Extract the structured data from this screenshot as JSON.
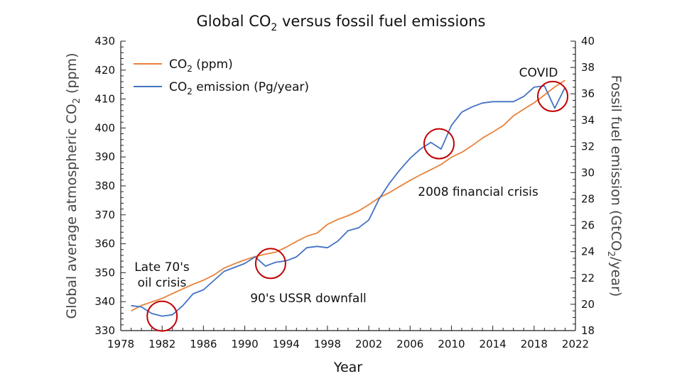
{
  "chart_data": {
    "type": "line",
    "title": "Global CO2 versus fossil fuel emissions",
    "title_parts": {
      "pre": "Global CO",
      "sub": "2",
      "post": " versus fossil fuel emissions"
    },
    "xlabel": "Year",
    "ylabel": "Global average atmospheric CO2 (ppm)",
    "ylabel_parts": {
      "pre": "Global average atmospheric CO",
      "sub": "2",
      "post": " (ppm)"
    },
    "y2label": "Fossil fuel emission (GtCO2/year)",
    "y2label_parts": {
      "pre": "Fossil fuel emission (GtCO",
      "sub": "2",
      "post": "/year)"
    },
    "xlim": [
      1978,
      2022
    ],
    "ylim": [
      330,
      430
    ],
    "y2lim": [
      18,
      40
    ],
    "x_ticks": [
      1978,
      1982,
      1986,
      1990,
      1994,
      1998,
      2002,
      2006,
      2010,
      2014,
      2018,
      2022
    ],
    "y_ticks": [
      330,
      340,
      350,
      360,
      370,
      380,
      390,
      400,
      410,
      420,
      430
    ],
    "y2_ticks": [
      18,
      20,
      22,
      24,
      26,
      28,
      30,
      32,
      34,
      36,
      38,
      40
    ],
    "legend_position": "top-left",
    "series": [
      {
        "name": "CO2 (ppm)",
        "legend_parts": {
          "pre": "CO",
          "sub": "2",
          "post": " (ppm)"
        },
        "axis": "left",
        "color": "#E8823A",
        "x": [
          1979,
          1980,
          1981,
          1982,
          1983,
          1984,
          1985,
          1986,
          1987,
          1988,
          1989,
          1990,
          1991,
          1992,
          1993,
          1994,
          1995,
          1996,
          1997,
          1998,
          1999,
          2000,
          2001,
          2002,
          2003,
          2004,
          2005,
          2006,
          2007,
          2008,
          2009,
          2010,
          2011,
          2012,
          2013,
          2014,
          2015,
          2016,
          2017,
          2018,
          2019,
          2020,
          2021
        ],
        "values": [
          336.8,
          338.7,
          339.9,
          341.1,
          342.8,
          344.4,
          346.0,
          347.4,
          349.2,
          351.6,
          353.1,
          354.4,
          355.6,
          356.4,
          357.1,
          358.8,
          360.8,
          362.6,
          363.7,
          366.7,
          368.4,
          369.7,
          371.3,
          373.5,
          375.9,
          377.7,
          379.8,
          381.9,
          383.8,
          385.6,
          387.4,
          389.9,
          391.6,
          393.9,
          396.5,
          398.6,
          400.8,
          404.2,
          406.5,
          408.7,
          411.4,
          414.2,
          416.5
        ]
      },
      {
        "name": "CO2 emission (Pg/year)",
        "legend_parts": {
          "pre": "CO",
          "sub": "2",
          "post": " emission (Pg/year)"
        },
        "axis": "right",
        "color": "#4472C4",
        "x": [
          1979,
          1980,
          1981,
          1982,
          1983,
          1984,
          1985,
          1986,
          1987,
          1988,
          1989,
          1990,
          1991,
          1992,
          1993,
          1994,
          1995,
          1996,
          1997,
          1998,
          1999,
          2000,
          2001,
          2002,
          2003,
          2004,
          2005,
          2006,
          2007,
          2008,
          2009,
          2010,
          2011,
          2012,
          2013,
          2014,
          2015,
          2016,
          2017,
          2018,
          2019,
          2020,
          2021
        ],
        "values": [
          19.9,
          19.8,
          19.3,
          19.1,
          19.2,
          19.9,
          20.8,
          21.1,
          21.8,
          22.5,
          22.8,
          23.1,
          23.6,
          22.9,
          23.2,
          23.3,
          23.6,
          24.3,
          24.4,
          24.3,
          24.8,
          25.6,
          25.8,
          26.4,
          28.0,
          29.2,
          30.2,
          31.1,
          31.8,
          32.3,
          31.8,
          33.6,
          34.6,
          35.0,
          35.3,
          35.4,
          35.4,
          35.4,
          35.8,
          36.5,
          36.6,
          34.9,
          36.5
        ]
      }
    ],
    "annotations": [
      {
        "label_lines": [
          "Late 70's",
          "oil crisis"
        ],
        "year": 1982,
        "emission": 19.1
      },
      {
        "label_lines": [
          "90's USSR downfall"
        ],
        "year": 1992.5,
        "emission": 23.1
      },
      {
        "label_lines": [
          "2008 financial crisis"
        ],
        "year": 2008.8,
        "emission": 32.2
      },
      {
        "label_lines": [
          "COVID"
        ],
        "year": 2019.8,
        "emission": 35.8
      }
    ]
  }
}
